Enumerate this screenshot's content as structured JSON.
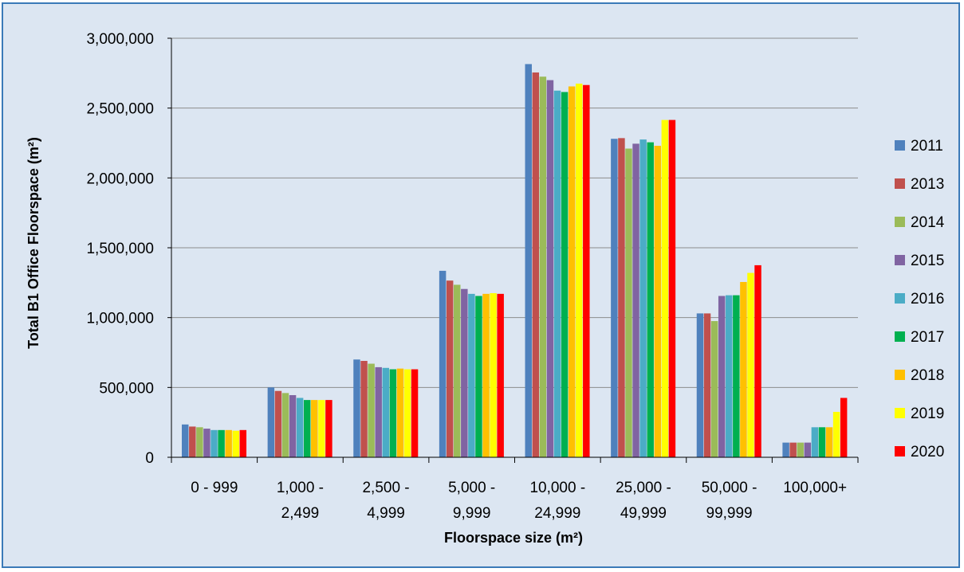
{
  "chart_data": {
    "type": "bar",
    "title": "",
    "xlabel": "Floorspace size (m²)",
    "ylabel": "Total B1 Office Floorspace (m²)",
    "ylim": [
      0,
      3000000
    ],
    "yticks": [
      0,
      500000,
      1000000,
      1500000,
      2000000,
      2500000,
      3000000
    ],
    "ytick_labels": [
      "0",
      "500,000",
      "1,000,000",
      "1,500,000",
      "2,000,000",
      "2,500,000",
      "3,000,000"
    ],
    "grid": true,
    "legend_position": "right",
    "categories": [
      [
        "0 - 999"
      ],
      [
        "1,000 -",
        "2,499"
      ],
      [
        "2,500 -",
        "4,999"
      ],
      [
        "5,000 -",
        "9,999"
      ],
      [
        "10,000 -",
        "24,999"
      ],
      [
        "25,000 -",
        "49,999"
      ],
      [
        "50,000 -",
        "99,999"
      ],
      [
        "100,000+"
      ]
    ],
    "series": [
      {
        "name": "2011",
        "color": "#4f81bd",
        "values": [
          235000,
          500000,
          700000,
          1335000,
          2815000,
          2280000,
          1030000,
          105000
        ]
      },
      {
        "name": "2013",
        "color": "#c0504d",
        "values": [
          220000,
          475000,
          690000,
          1265000,
          2755000,
          2285000,
          1030000,
          105000
        ]
      },
      {
        "name": "2014",
        "color": "#9bbb59",
        "values": [
          215000,
          460000,
          670000,
          1235000,
          2725000,
          2210000,
          975000,
          105000
        ]
      },
      {
        "name": "2015",
        "color": "#8064a2",
        "values": [
          205000,
          445000,
          645000,
          1205000,
          2700000,
          2245000,
          1155000,
          105000
        ]
      },
      {
        "name": "2016",
        "color": "#4bacc6",
        "values": [
          195000,
          425000,
          640000,
          1170000,
          2625000,
          2275000,
          1160000,
          215000
        ]
      },
      {
        "name": "2017",
        "color": "#00b050",
        "values": [
          195000,
          410000,
          630000,
          1155000,
          2615000,
          2255000,
          1160000,
          215000
        ]
      },
      {
        "name": "2018",
        "color": "#ffc000",
        "values": [
          195000,
          410000,
          635000,
          1170000,
          2655000,
          2230000,
          1255000,
          215000
        ]
      },
      {
        "name": "2019",
        "color": "#ffff00",
        "values": [
          190000,
          410000,
          630000,
          1175000,
          2675000,
          2415000,
          1320000,
          325000
        ]
      },
      {
        "name": "2020",
        "color": "#ff0000",
        "values": [
          195000,
          410000,
          630000,
          1170000,
          2665000,
          2415000,
          1375000,
          425000
        ]
      }
    ]
  }
}
